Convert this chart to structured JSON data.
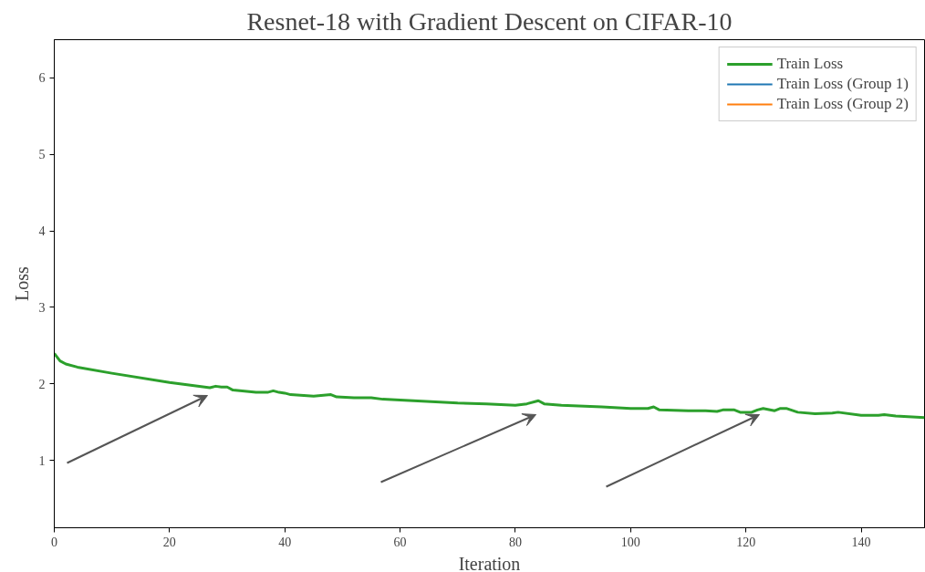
{
  "chart_data": {
    "type": "line",
    "title": "Resnet-18 with Gradient Descent on CIFAR-10",
    "xlabel": "Iteration",
    "ylabel": "Loss",
    "xlim": [
      0,
      151
    ],
    "ylim": [
      0.12,
      6.5
    ],
    "xticks": [
      0,
      20,
      40,
      60,
      80,
      100,
      120,
      140
    ],
    "yticks": [
      1,
      2,
      3,
      4,
      5,
      6
    ],
    "grid": false,
    "legend": "top right",
    "line_style": "solid",
    "marker": "none",
    "series": [
      {
        "name": "Train Loss",
        "color": "#2ca02c",
        "x": [
          0,
          1,
          2,
          4,
          10,
          20,
          27,
          28,
          29,
          30,
          31,
          35,
          37,
          38,
          39,
          40,
          41,
          45,
          48,
          49,
          52,
          55,
          57,
          60,
          70,
          75,
          80,
          82,
          84,
          85,
          88,
          95,
          100,
          103,
          104,
          105,
          110,
          113,
          115,
          116,
          118,
          119,
          121,
          122,
          123,
          125,
          126,
          127,
          129,
          132,
          135,
          136,
          140,
          143,
          144,
          146,
          151
        ],
        "values": [
          2.4,
          2.3,
          2.26,
          2.22,
          2.14,
          2.02,
          1.95,
          1.97,
          1.96,
          1.96,
          1.92,
          1.89,
          1.89,
          1.91,
          1.89,
          1.88,
          1.86,
          1.84,
          1.86,
          1.83,
          1.82,
          1.82,
          1.8,
          1.79,
          1.75,
          1.74,
          1.72,
          1.74,
          1.78,
          1.74,
          1.72,
          1.7,
          1.68,
          1.68,
          1.7,
          1.66,
          1.65,
          1.65,
          1.64,
          1.66,
          1.66,
          1.63,
          1.63,
          1.66,
          1.68,
          1.65,
          1.68,
          1.68,
          1.63,
          1.61,
          1.62,
          1.63,
          1.59,
          1.59,
          1.6,
          1.58,
          1.56
        ]
      },
      {
        "name": "Train Loss (Group 1)",
        "color": "#1f77b4"
      },
      {
        "name": "Train Loss (Group 2)",
        "color": "#ff7f0e"
      }
    ]
  }
}
